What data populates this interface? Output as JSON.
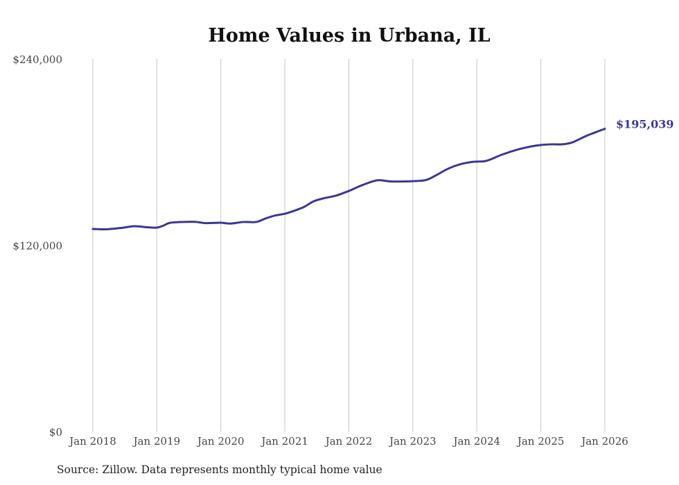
{
  "chart_data": {
    "type": "line",
    "title": "Home Values in Urbana, IL",
    "xlabel": "",
    "ylabel": "",
    "ylim": [
      0,
      240000
    ],
    "xlim": [
      2018,
      2026
    ],
    "grid": "vertical",
    "y_ticks": [
      {
        "value": 0,
        "label": "$0"
      },
      {
        "value": 120000,
        "label": "$120,000"
      },
      {
        "value": 240000,
        "label": "$240,000"
      }
    ],
    "x_ticks": [
      {
        "value": 2018,
        "label": "Jan 2018"
      },
      {
        "value": 2019,
        "label": "Jan 2019"
      },
      {
        "value": 2020,
        "label": "Jan 2020"
      },
      {
        "value": 2021,
        "label": "Jan 2021"
      },
      {
        "value": 2022,
        "label": "Jan 2022"
      },
      {
        "value": 2023,
        "label": "Jan 2023"
      },
      {
        "value": 2024,
        "label": "Jan 2024"
      },
      {
        "value": 2025,
        "label": "Jan 2025"
      },
      {
        "value": 2026,
        "label": "Jan 2026"
      }
    ],
    "series": [
      {
        "name": "Typical home value",
        "color": "#3b3596",
        "x": [
          2018.0,
          2018.2,
          2018.45,
          2018.65,
          2018.85,
          2019.0,
          2019.1,
          2019.2,
          2019.4,
          2019.6,
          2019.75,
          2019.9,
          2020.0,
          2020.15,
          2020.35,
          2020.55,
          2020.7,
          2020.85,
          2021.0,
          2021.15,
          2021.3,
          2021.45,
          2021.6,
          2021.8,
          2022.0,
          2022.2,
          2022.4,
          2022.5,
          2022.65,
          2022.85,
          2023.0,
          2023.2,
          2023.35,
          2023.55,
          2023.75,
          2023.95,
          2024.15,
          2024.4,
          2024.65,
          2024.85,
          2025.0,
          2025.15,
          2025.35,
          2025.5,
          2025.7,
          2025.85,
          2026.0
        ],
        "values": [
          130500,
          130300,
          131200,
          132300,
          131600,
          131400,
          132600,
          134400,
          135000,
          135100,
          134300,
          134400,
          134500,
          134000,
          135000,
          135000,
          137300,
          139200,
          140300,
          142300,
          144700,
          148300,
          150200,
          152000,
          155000,
          158600,
          161500,
          161900,
          161100,
          161100,
          161300,
          162000,
          164800,
          169300,
          172300,
          173800,
          174400,
          178500,
          181800,
          183700,
          184600,
          185000,
          185100,
          186400,
          190300,
          192700,
          195039
        ]
      }
    ],
    "end_label": "$195,039",
    "source": "Source: Zillow. Data represents monthly typical home value"
  }
}
